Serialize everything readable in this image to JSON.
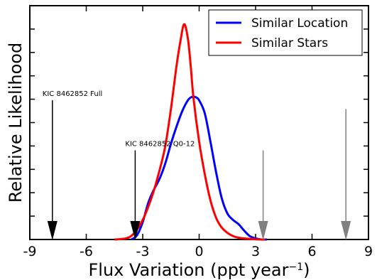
{
  "chart_data": {
    "type": "line",
    "xlabel": "Flux Variation (ppt year",
    "xlabel_sup": "−1",
    "xlabel_close": ")",
    "ylabel": "Relative Likelihood",
    "xlim": [
      -9,
      9
    ],
    "ylim": [
      0,
      1
    ],
    "grid": false,
    "legend_position": "top-right",
    "x_ticks": [
      -9,
      -6,
      -3,
      0,
      3,
      6,
      9
    ],
    "x_tick_labels": [
      "-9",
      "-6",
      "-3",
      "0",
      "3",
      "6",
      "9"
    ],
    "series": [
      {
        "name": "Similar Location",
        "color": "#0000ff",
        "x": [
          -3.6,
          -3.3,
          -3.0,
          -2.7,
          -2.4,
          -2.1,
          -1.8,
          -1.5,
          -1.2,
          -0.9,
          -0.6,
          -0.4,
          -0.2,
          0.0,
          0.3,
          0.6,
          0.9,
          1.2,
          1.5,
          1.8,
          2.1,
          2.4,
          2.7,
          3.0,
          3.3,
          3.6
        ],
        "y": [
          0.0,
          0.02,
          0.08,
          0.17,
          0.23,
          0.28,
          0.35,
          0.44,
          0.52,
          0.59,
          0.64,
          0.655,
          0.655,
          0.64,
          0.58,
          0.45,
          0.31,
          0.19,
          0.12,
          0.09,
          0.07,
          0.04,
          0.015,
          0.005,
          0.0,
          0.0
        ]
      },
      {
        "name": "Similar Stars",
        "color": "#ff0000",
        "x": [
          -4.5,
          -3.9,
          -3.5,
          -3.0,
          -2.5,
          -2.1,
          -1.8,
          -1.5,
          -1.2,
          -1.0,
          -0.8,
          -0.6,
          -0.45,
          -0.3,
          0.0,
          0.3,
          0.6,
          0.9,
          1.2,
          1.6,
          2.0,
          2.5,
          3.0,
          3.5
        ],
        "y": [
          0.0,
          0.005,
          0.025,
          0.09,
          0.2,
          0.32,
          0.43,
          0.6,
          0.8,
          0.91,
          0.99,
          0.925,
          0.8,
          0.65,
          0.45,
          0.3,
          0.18,
          0.1,
          0.055,
          0.025,
          0.01,
          0.004,
          0.001,
          0.0
        ]
      }
    ],
    "annotations": [
      {
        "label": "KIC 8462852 Full",
        "x": -7.8,
        "y_top": 0.64,
        "color": "#000000"
      },
      {
        "label": "KIC 8462852 Q0-12",
        "x": -3.4,
        "y_top": 0.41,
        "color": "#000000"
      },
      {
        "label": "",
        "x": 3.4,
        "y_top": 0.41,
        "color": "#808080"
      },
      {
        "label": "",
        "x": 7.8,
        "y_top": 0.6,
        "color": "#808080"
      }
    ]
  }
}
